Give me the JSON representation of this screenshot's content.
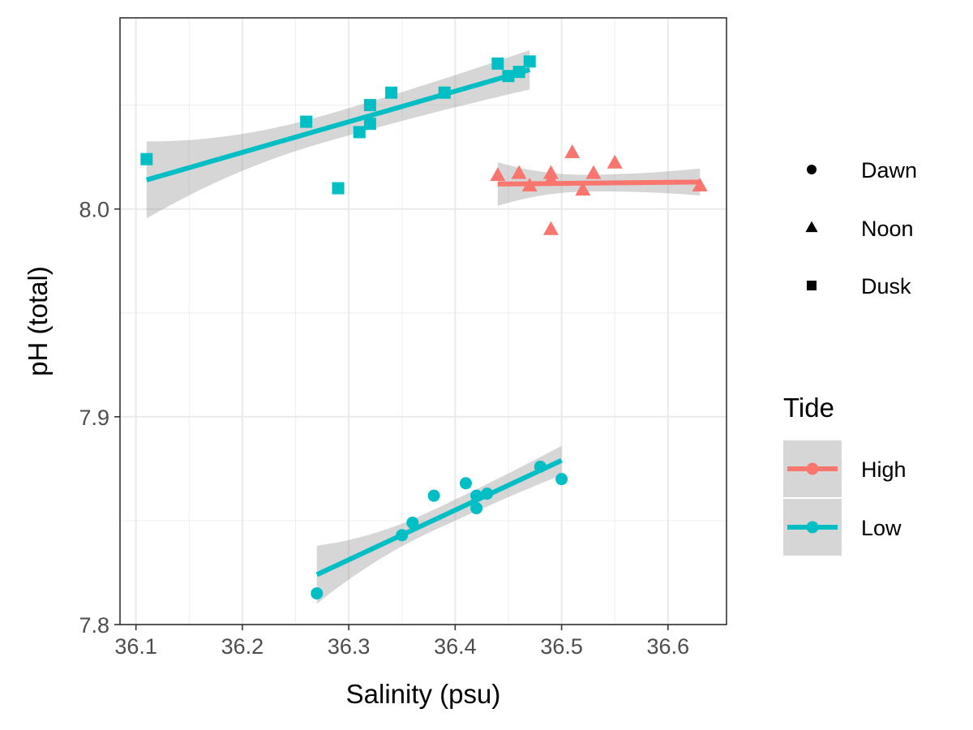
{
  "chart_data": {
    "type": "scatter",
    "xlabel": "Salinity (psu)",
    "ylabel": "pH (total)",
    "xlim": [
      36.085,
      36.655
    ],
    "ylim": [
      7.8,
      8.092
    ],
    "x_ticks": [
      36.1,
      36.2,
      36.3,
      36.4,
      36.5,
      36.6
    ],
    "x_tick_labels": [
      "36.1",
      "36.2",
      "36.3",
      "36.4",
      "36.5",
      "36.6"
    ],
    "y_ticks": [
      7.8,
      7.9,
      8.0
    ],
    "y_tick_labels": [
      "7.8",
      "7.9",
      "8.0"
    ],
    "grid": true,
    "legend_position": "right",
    "shape_legend": {
      "entries": [
        {
          "label": "Dawn",
          "shape": "circle"
        },
        {
          "label": "Noon",
          "shape": "triangle"
        },
        {
          "label": "Dusk",
          "shape": "square"
        }
      ]
    },
    "color_legend": {
      "title": "Tide",
      "entries": [
        {
          "label": "High",
          "color": "#F8766D"
        },
        {
          "label": "Low",
          "color": "#00BFC4"
        }
      ]
    },
    "series": [
      {
        "tide": "Low",
        "time": "Dawn",
        "shape": "circle",
        "color": "#00BFC4",
        "points": [
          [
            36.27,
            7.815
          ],
          [
            36.35,
            7.843
          ],
          [
            36.36,
            7.849
          ],
          [
            36.38,
            7.862
          ],
          [
            36.41,
            7.868
          ],
          [
            36.42,
            7.862
          ],
          [
            36.42,
            7.856
          ],
          [
            36.43,
            7.863
          ],
          [
            36.48,
            7.876
          ],
          [
            36.5,
            7.87
          ]
        ],
        "fit": {
          "x": [
            36.27,
            36.5
          ],
          "y": [
            7.824,
            7.879
          ],
          "band": [
            [
              0.014,
              0.005,
              0.007
            ]
          ]
        }
      },
      {
        "tide": "High",
        "time": "Noon",
        "shape": "triangle",
        "color": "#F8766D",
        "points": [
          [
            36.44,
            8.016
          ],
          [
            36.46,
            8.017
          ],
          [
            36.47,
            8.011
          ],
          [
            36.49,
            8.017
          ],
          [
            36.49,
            8.014
          ],
          [
            36.49,
            7.99
          ],
          [
            36.51,
            8.027
          ],
          [
            36.52,
            8.009
          ],
          [
            36.53,
            8.017
          ],
          [
            36.55,
            8.022
          ],
          [
            36.63,
            8.011
          ]
        ],
        "fit": {
          "x": [
            36.44,
            36.63
          ],
          "y": [
            8.012,
            8.013
          ]
        }
      },
      {
        "tide": "Low",
        "time": "Dusk",
        "shape": "square",
        "color": "#00BFC4",
        "points": [
          [
            36.11,
            8.024
          ],
          [
            36.26,
            8.042
          ],
          [
            36.29,
            8.01
          ],
          [
            36.31,
            8.037
          ],
          [
            36.32,
            8.041
          ],
          [
            36.32,
            8.05
          ],
          [
            36.34,
            8.056
          ],
          [
            36.39,
            8.056
          ],
          [
            36.44,
            8.07
          ],
          [
            36.45,
            8.064
          ],
          [
            36.46,
            8.066
          ],
          [
            36.47,
            8.071
          ]
        ],
        "fit": {
          "x": [
            36.11,
            36.47
          ],
          "y": [
            8.014,
            8.067
          ]
        }
      }
    ]
  }
}
